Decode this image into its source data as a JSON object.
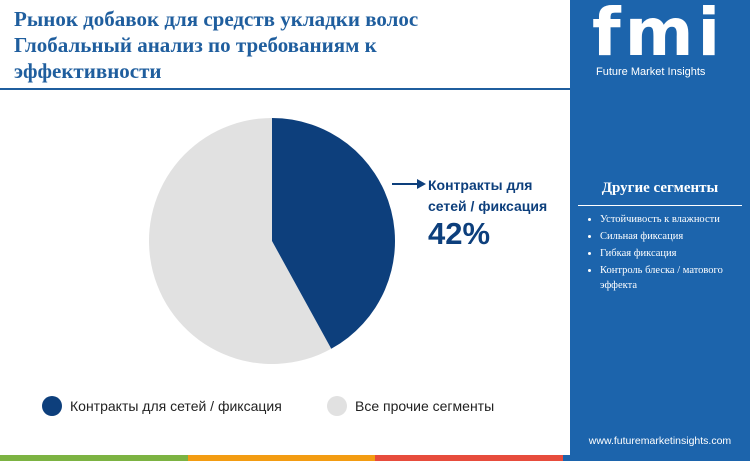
{
  "chart_data": {
    "type": "pie",
    "title": "Рынок добавок для средств укладки волос Глобальный анализ по требованиям к эффективности",
    "categories": [
      "Контракты для сетей / фиксация",
      "Все прочие сегменты"
    ],
    "values": [
      42,
      58
    ],
    "value_labels": [
      "42%",
      null
    ],
    "colors": [
      "#0d3f7c",
      "#e1e1e1"
    ]
  },
  "brand": {
    "logo": "fmi",
    "name": "Future Market Insights",
    "url": "www.futuremarketinsights.com"
  },
  "other_segments": {
    "title": "Другие сегменты",
    "items": [
      "Устойчивость к влажности",
      "Сильная фиксация",
      "Гибкая фиксация",
      "Контроль блеска / матового эффекта"
    ]
  }
}
